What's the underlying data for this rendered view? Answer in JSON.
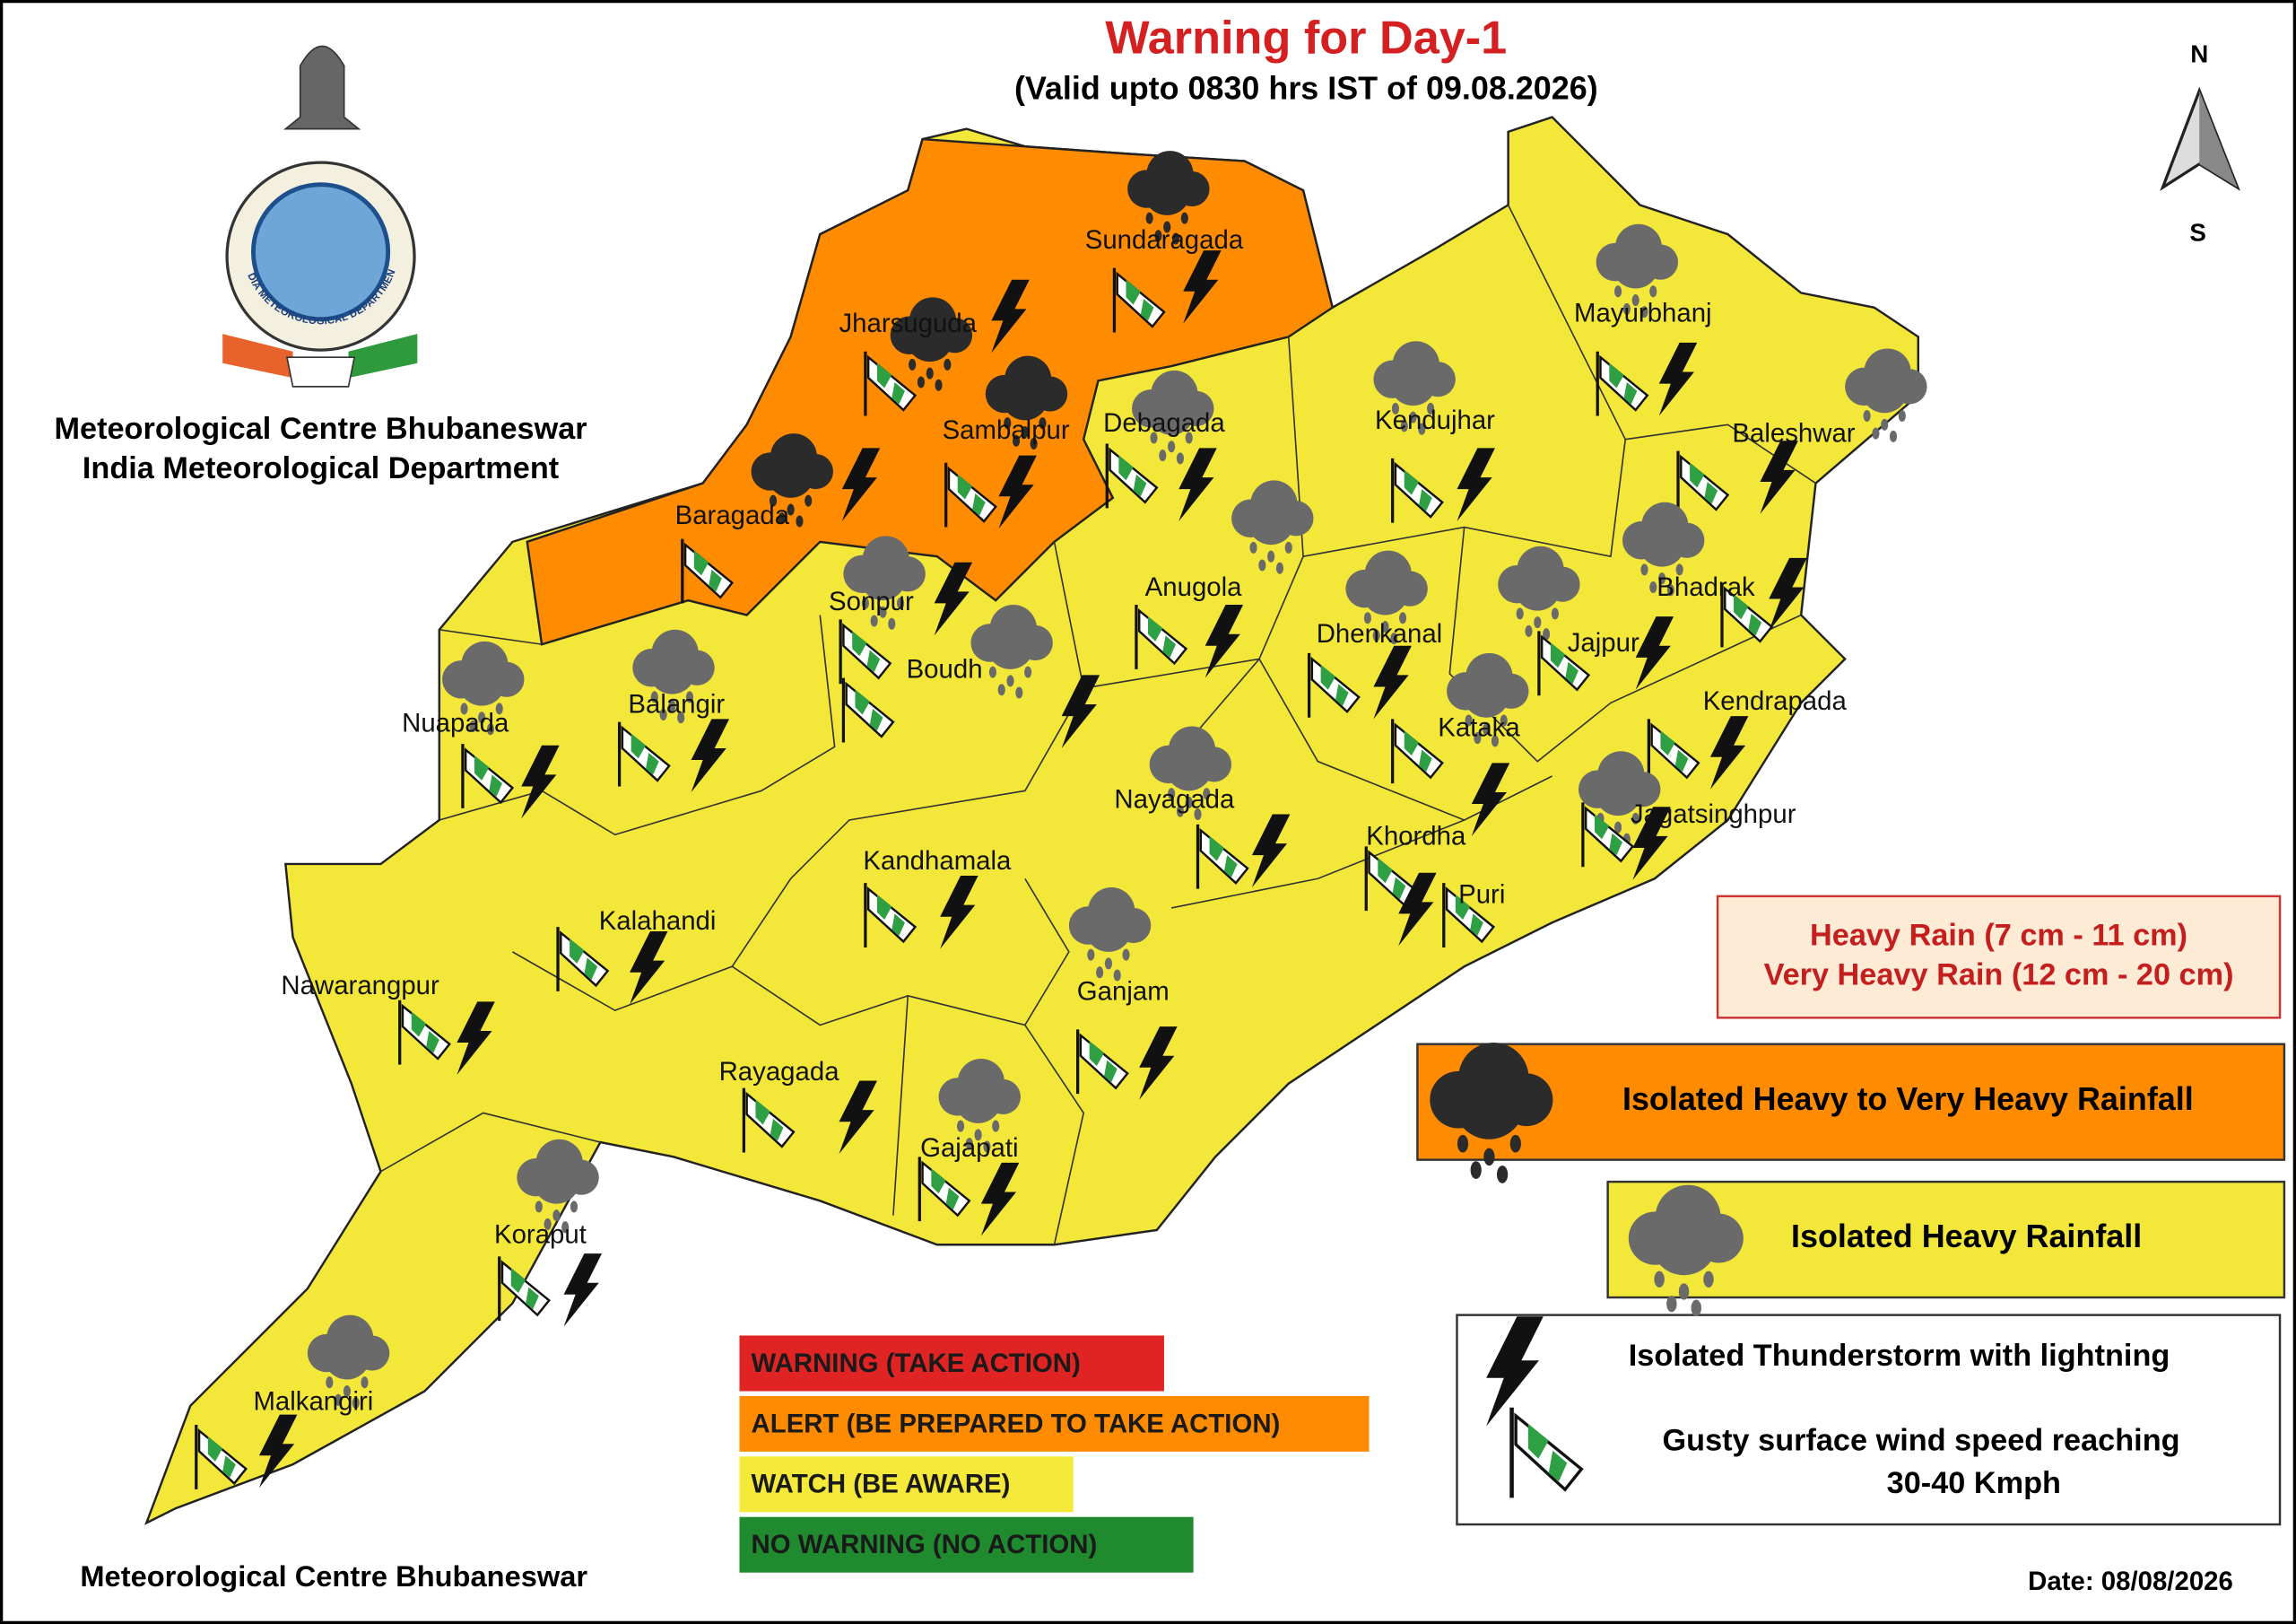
{
  "header": {
    "title": "Warning for Day-1",
    "subtitle": "(Valid upto 0830 hrs IST of 09.08.2026)"
  },
  "organization": {
    "line1": "Meteorological Centre Bhubaneswar",
    "line2": "India Meteorological Department",
    "emblem_text": "INDIA METEOROLOGICAL DEPARTMENT"
  },
  "compass": {
    "north": "N",
    "south": "S"
  },
  "districts": [
    "Sundaragada",
    "Jharsuguda",
    "Sambalpur",
    "Baragada",
    "Debagada",
    "Kendujhar",
    "Mayurbhanj",
    "Baleshwar",
    "Bhadrak",
    "Anugola",
    "Dhenkanal",
    "Jajpur",
    "Sonpur",
    "Boudh",
    "Nuapada",
    "Balangir",
    "Kataka",
    "Kendrapada",
    "Jagatsinghpur",
    "Nayagada",
    "Khordha",
    "Puri",
    "Kandhamala",
    "Kalahandi",
    "Nawarangpur",
    "Ganjam",
    "Rayagada",
    "Gajapati",
    "Koraput",
    "Malkangiri"
  ],
  "legend": {
    "rain_amounts": [
      "Heavy Rain (7 cm - 11 cm)",
      "Very Heavy Rain (12 cm - 20 cm)"
    ],
    "heavy_to_very_heavy": "Isolated Heavy to Very Heavy Rainfall",
    "heavy": "Isolated Heavy Rainfall",
    "thunderstorm": "Isolated Thunderstorm with lightning",
    "wind": [
      "Gusty surface wind speed reaching",
      "30-40 Kmph"
    ]
  },
  "color_codes": [
    {
      "label": "WARNING (TAKE ACTION)",
      "color": "#e02424"
    },
    {
      "label": "ALERT (BE PREPARED TO TAKE ACTION)",
      "color": "#ff8c00"
    },
    {
      "label": "WATCH (BE AWARE)",
      "color": "#f5ea3a"
    },
    {
      "label": "NO WARNING (NO ACTION)",
      "color": "#1f8a2e"
    }
  ],
  "footer": {
    "left": "Meteorological Centre Bhubaneswar",
    "date": "Date: 08/08/2026"
  }
}
